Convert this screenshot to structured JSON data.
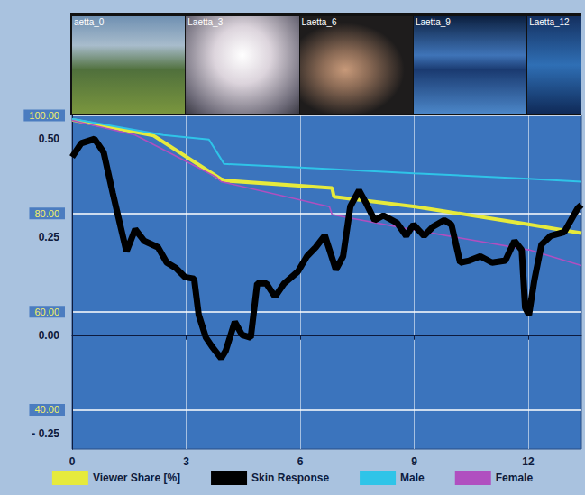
{
  "frames": [
    "aetta_0",
    "Laetta_3",
    "Laetta_6",
    "Laetta_9",
    "Laetta_12"
  ],
  "chart_data": {
    "type": "line",
    "xlim": [
      0,
      13.4
    ],
    "xticks": [
      0,
      3,
      6,
      9,
      12
    ],
    "ylim": [
      -0.29,
      0.56
    ],
    "yticks": [
      {
        "value": -0.25,
        "label": "- 0.25"
      },
      {
        "value": 0,
        "label": "0.00"
      },
      0.25,
      {
        "value": 0.5,
        "label": "0.50"
      }
    ],
    "y2lim": [
      32,
      100
    ],
    "y2ticks": [
      {
        "value": 40,
        "label": "40.00"
      },
      {
        "value": 60,
        "label": "60.00"
      },
      {
        "value": 80,
        "label": "80.00"
      },
      {
        "value": 100,
        "label": "100.00"
      }
    ],
    "grid": true,
    "legend": "bottom",
    "series": [
      {
        "name": "Viewer Share [%]",
        "color": "#e6ea3c",
        "axis": "y2",
        "x": [
          0,
          2.14,
          3.92,
          4.04,
          6.84,
          6.89,
          9.03,
          12.0,
          13.4
        ],
        "values": [
          99.1,
          95.9,
          87.0,
          86.7,
          85.2,
          83.4,
          81.4,
          77.8,
          76.0
        ]
      },
      {
        "name": "Skin Response",
        "color": "#000000",
        "x": [
          0,
          0.24,
          0.59,
          0.83,
          1.07,
          1.43,
          1.66,
          1.9,
          2.26,
          2.49,
          2.73,
          2.97,
          3.21,
          3.33,
          3.52,
          3.68,
          3.92,
          4.04,
          4.28,
          4.47,
          4.7,
          4.87,
          5.11,
          5.34,
          5.58,
          5.94,
          6.18,
          6.41,
          6.65,
          6.94,
          7.13,
          7.32,
          7.55,
          7.72,
          7.96,
          8.19,
          8.55,
          8.79,
          8.98,
          9.26,
          9.5,
          9.79,
          9.98,
          10.21,
          10.45,
          10.74,
          11.05,
          11.4,
          11.64,
          11.83,
          11.92,
          12.02,
          12.16,
          12.35,
          12.59,
          12.95,
          13.3,
          13.4
        ],
        "values": [
          0.454,
          0.489,
          0.5,
          0.466,
          0.362,
          0.213,
          0.27,
          0.24,
          0.224,
          0.185,
          0.171,
          0.148,
          0.144,
          0.052,
          -0.006,
          -0.029,
          -0.059,
          -0.04,
          0.034,
          0.001,
          -0.006,
          0.132,
          0.132,
          0.098,
          0.132,
          0.162,
          0.201,
          0.224,
          0.254,
          0.167,
          0.201,
          0.328,
          0.369,
          0.339,
          0.293,
          0.305,
          0.286,
          0.253,
          0.282,
          0.253,
          0.277,
          0.293,
          0.282,
          0.185,
          0.19,
          0.201,
          0.185,
          0.19,
          0.24,
          0.217,
          0.07,
          0.052,
          0.139,
          0.231,
          0.253,
          0.263,
          0.323,
          0.332
        ]
      },
      {
        "name": "Male",
        "color": "#2fc4e8",
        "axis": "y2",
        "x": [
          0,
          2.4,
          3.6,
          4.0,
          6.0,
          9.0,
          12.0,
          13.4
        ],
        "values": [
          99.3,
          96.0,
          95.1,
          90.1,
          89.4,
          88.2,
          87.1,
          86.5
        ]
      },
      {
        "name": "Female",
        "color": "#b04fc0",
        "axis": "y2",
        "x": [
          0,
          1.66,
          3.8,
          3.92,
          6.77,
          6.84,
          9.03,
          12.02,
          13.4
        ],
        "values": [
          99.0,
          96.0,
          87.4,
          86.5,
          81.4,
          79.8,
          76.6,
          72.6,
          69.4
        ]
      }
    ]
  }
}
